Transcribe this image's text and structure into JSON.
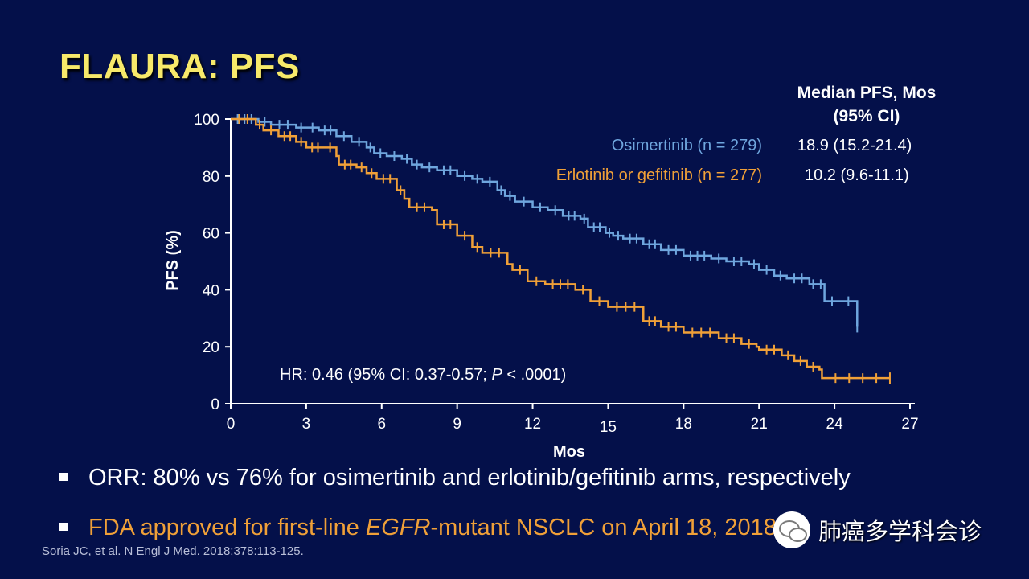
{
  "slide": {
    "title": "FLAURA: PFS"
  },
  "table": {
    "header_line1": "Median PFS, Mos",
    "header_line2": "(95%  CI)",
    "rows": [
      {
        "label": "Osimertinib (n = 279)",
        "value": "18.9 (15.2-21.4)",
        "color": "#6fa6de"
      },
      {
        "label": "Erlotinib or gefitinib (n = 277)",
        "value": "10.2 (9.6-11.1)",
        "color": "#f0a038"
      }
    ]
  },
  "annotation": {
    "hr_prefix": "HR: 0.46 (95% CI: 0.37-0.57; ",
    "hr_p": "P",
    "hr_suffix": " < .0001)"
  },
  "bullets": {
    "b1": "ORR: 80% vs 76% for osimertinib and erlotinib/gefitinib arms, respectively",
    "b2_pre": "FDA approved for first-line ",
    "b2_em": "EGFR",
    "b2_post": "-mutant NSCLC on April 18, 2018"
  },
  "citation": "Soria JC, et al. N Engl J Med. 2018;378:113-125.",
  "watermark": {
    "text": "肺癌多学科会诊",
    "icon": "wechat-icon"
  },
  "colors": {
    "background": "#04104a",
    "title": "#f7e96a",
    "osimertinib": "#6fa6de",
    "comparator": "#f0a038"
  },
  "chart_data": {
    "type": "line",
    "title": "",
    "xlabel": "Mos",
    "ylabel": "PFS (%)",
    "xlim": [
      0,
      27
    ],
    "ylim": [
      0,
      100
    ],
    "xticks": [
      0,
      3,
      6,
      9,
      12,
      15,
      18,
      21,
      24,
      27
    ],
    "yticks": [
      0,
      20,
      40,
      60,
      80,
      100
    ],
    "grid": false,
    "step": true,
    "series": [
      {
        "name": "Osimertinib (n = 279)",
        "color": "#6fa6de",
        "x": [
          0,
          1.1,
          1.6,
          2.6,
          3.0,
          3.5,
          4.2,
          4.8,
          5.4,
          5.7,
          6.2,
          6.8,
          7.2,
          7.6,
          8.2,
          9.0,
          9.6,
          10.0,
          10.6,
          10.9,
          11.3,
          12.0,
          12.6,
          13.2,
          13.9,
          14.2,
          14.9,
          15.2,
          15.6,
          16.4,
          17.1,
          18.0,
          19.1,
          19.7,
          20.6,
          21.0,
          21.6,
          22.1,
          23.0,
          23.3,
          23.6,
          24.2,
          24.9
        ],
        "y": [
          100,
          99,
          98,
          97,
          97,
          96,
          94,
          92,
          90,
          88,
          87,
          86,
          84,
          83,
          82,
          80,
          79,
          78,
          75,
          73,
          71,
          69,
          68,
          66,
          65,
          62,
          60,
          59,
          58,
          56,
          54,
          52,
          51,
          50,
          49,
          47,
          45,
          44,
          42,
          42,
          36,
          36,
          27
        ]
      },
      {
        "name": "Erlotinib or gefitinib (n = 277)",
        "color": "#f0a038",
        "x": [
          0,
          1.0,
          1.3,
          1.9,
          2.6,
          3.0,
          3.7,
          4.2,
          4.3,
          5.0,
          5.4,
          5.8,
          6.6,
          6.9,
          7.1,
          8.0,
          8.2,
          9.0,
          9.6,
          10.0,
          11.0,
          11.2,
          11.8,
          12.5,
          13.7,
          14.3,
          15.0,
          16.4,
          17.1,
          18.0,
          19.4,
          20.3,
          20.9,
          21.0,
          21.9,
          22.4,
          22.9,
          23.4,
          23.5
        ],
        "y": [
          100,
          98,
          96,
          94,
          92,
          90,
          90,
          87,
          84,
          83,
          81,
          79,
          75,
          72,
          69,
          68,
          63,
          59,
          55,
          53,
          49,
          47,
          43,
          42,
          40,
          36,
          34,
          29,
          27,
          25,
          23,
          21,
          20,
          19,
          17,
          15,
          13,
          12,
          9
        ],
        "end_x": 26.2
      }
    ]
  }
}
